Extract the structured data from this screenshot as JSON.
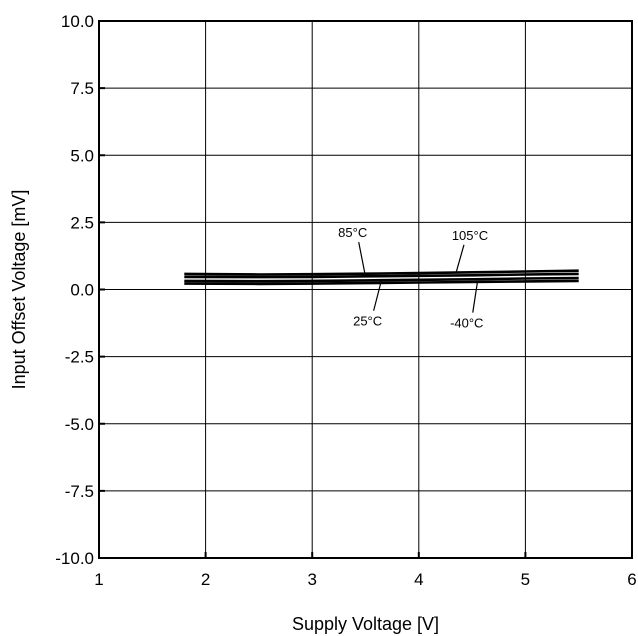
{
  "chart_data": {
    "type": "line",
    "title": "",
    "xlabel": "Supply Voltage [V]",
    "ylabel": "Input Offset Voltage [mV]",
    "xlim": [
      1,
      6
    ],
    "ylim": [
      -10,
      10
    ],
    "xticks": [
      1,
      2,
      3,
      4,
      5,
      6
    ],
    "xtick_labels": [
      "1",
      "2",
      "3",
      "4",
      "5",
      "6"
    ],
    "yticks": [
      10,
      7.5,
      5,
      2.5,
      0,
      -2.5,
      -5,
      -7.5,
      -10
    ],
    "ytick_labels": [
      "10.0",
      "7.5",
      "5.0",
      "2.5",
      "0.0",
      "-2.5",
      "-5.0",
      "-7.5",
      "-10.0"
    ],
    "grid": true,
    "series": [
      {
        "name": "105°C",
        "x": [
          1.8,
          2.5,
          3,
          3.5,
          4,
          4.5,
          5,
          5.5
        ],
        "y": [
          0.58,
          0.56,
          0.57,
          0.59,
          0.61,
          0.64,
          0.67,
          0.7
        ]
      },
      {
        "name": "85°C",
        "x": [
          1.8,
          2.5,
          3,
          3.5,
          4,
          4.5,
          5,
          5.5
        ],
        "y": [
          0.47,
          0.46,
          0.47,
          0.49,
          0.51,
          0.53,
          0.56,
          0.58
        ]
      },
      {
        "name": "25°C",
        "x": [
          1.8,
          2.5,
          3,
          3.5,
          4,
          4.5,
          5,
          5.5
        ],
        "y": [
          0.32,
          0.31,
          0.32,
          0.34,
          0.36,
          0.38,
          0.41,
          0.43
        ]
      },
      {
        "name": "-40°C",
        "x": [
          1.8,
          2.5,
          3,
          3.5,
          4,
          4.5,
          5,
          5.5
        ],
        "y": [
          0.22,
          0.21,
          0.22,
          0.24,
          0.26,
          0.28,
          0.3,
          0.32
        ]
      }
    ],
    "annotations": [
      {
        "text": "85°C",
        "label_x": 3.38,
        "label_y": 1.95,
        "point_x": 3.5,
        "point_y": 0.48
      },
      {
        "text": "105°C",
        "label_x": 4.48,
        "label_y": 1.85,
        "point_x": 4.35,
        "point_y": 0.63
      },
      {
        "text": "25°C",
        "label_x": 3.52,
        "label_y": -1.35,
        "point_x": 3.65,
        "point_y": 0.35
      },
      {
        "text": "-40°C",
        "label_x": 4.45,
        "label_y": -1.42,
        "point_x": 4.55,
        "point_y": 0.28
      }
    ]
  }
}
